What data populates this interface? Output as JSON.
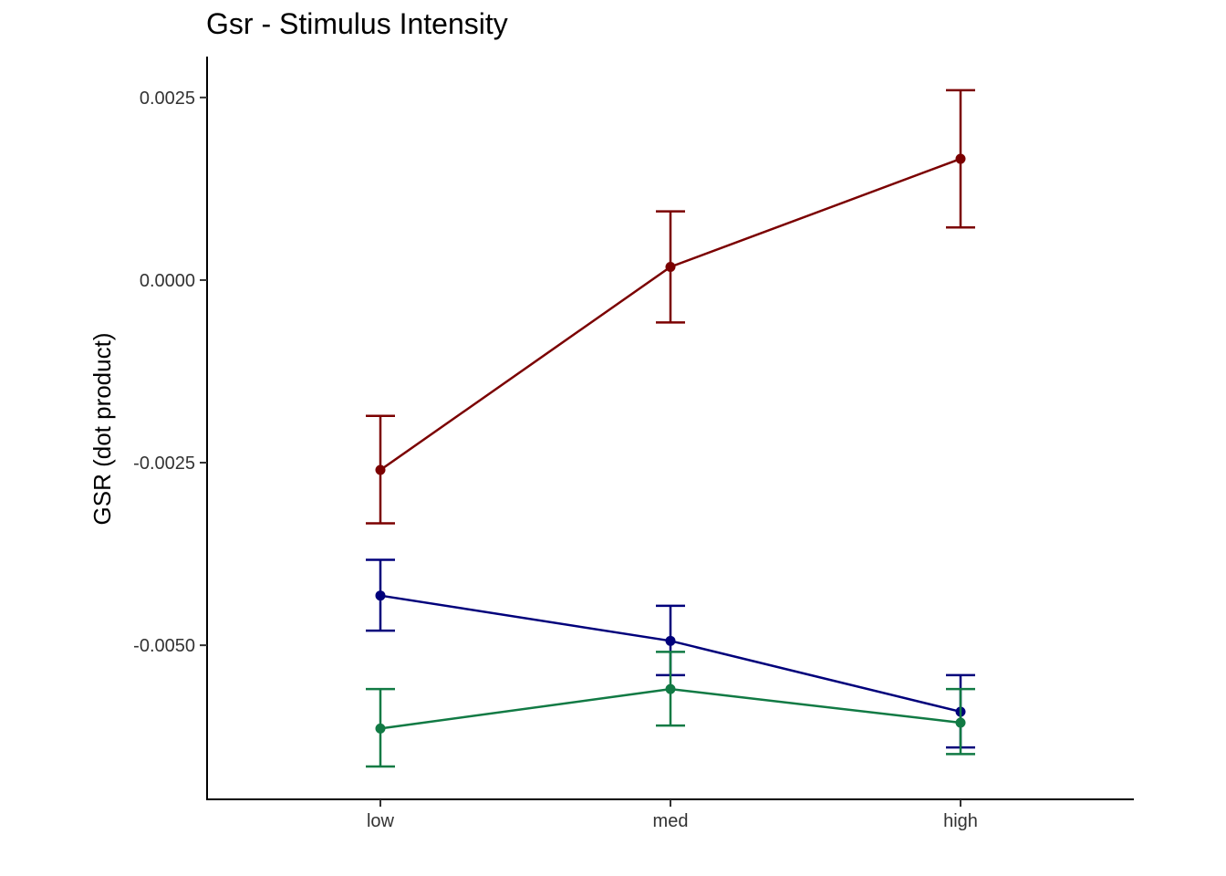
{
  "chart_data": {
    "type": "line",
    "title": "Gsr - Stimulus Intensity",
    "xlabel": "",
    "ylabel": "GSR  (dot product)",
    "categories": [
      "low",
      "med",
      "high"
    ],
    "yticks": [
      0.0025,
      0.0,
      -0.0025,
      -0.005
    ],
    "ytick_labels": [
      "0.0025",
      "0.0000",
      "-0.0025",
      "-0.0050"
    ],
    "ylim": [
      -0.00711,
      0.00306
    ],
    "grid": false,
    "legend": "none",
    "series": [
      {
        "color": "#7b0000",
        "values": [
          -0.0026,
          0.00018,
          0.00166
        ],
        "err_low": [
          -0.00333,
          -0.00058,
          0.00072
        ],
        "err_high": [
          -0.00186,
          0.00094,
          0.0026
        ]
      },
      {
        "color": "#00007b",
        "values": [
          -0.00432,
          -0.00494,
          -0.00591
        ],
        "err_low": [
          -0.0048,
          -0.00541,
          -0.0064
        ],
        "err_high": [
          -0.00383,
          -0.00446,
          -0.00541
        ]
      },
      {
        "color": "#117a44",
        "values": [
          -0.00614,
          -0.0056,
          -0.00606
        ],
        "err_low": [
          -0.00666,
          -0.0061,
          -0.00649
        ],
        "err_high": [
          -0.0056,
          -0.00509,
          -0.0056
        ]
      }
    ]
  }
}
